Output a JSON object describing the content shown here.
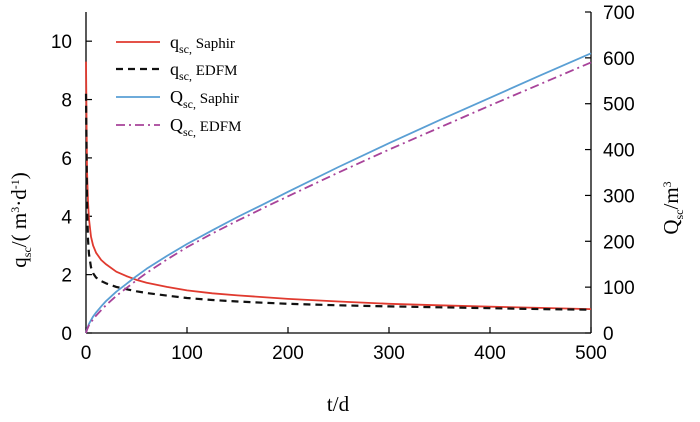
{
  "chart_data": {
    "type": "line",
    "title": "",
    "x": [
      0,
      1,
      2,
      3,
      5,
      7,
      10,
      15,
      20,
      30,
      40,
      50,
      60,
      80,
      100,
      125,
      150,
      175,
      200,
      250,
      300,
      350,
      400,
      450,
      500
    ],
    "xlabel": "t/d",
    "ylabel_left": "q_sc/(m³·d⁻¹)",
    "ylabel_right": "Q_sc/m³",
    "xlim": [
      0,
      500
    ],
    "ylim_left": [
      0,
      11
    ],
    "ylim_right": [
      0,
      700
    ],
    "xticks": [
      0,
      100,
      200,
      300,
      400,
      500
    ],
    "yticks_left": [
      0,
      2,
      4,
      6,
      8,
      10
    ],
    "yticks_right": [
      0,
      100,
      200,
      300,
      400,
      500,
      600,
      700
    ],
    "grid": false,
    "legend_position": "top-left",
    "series": [
      {
        "name": "q_sc, Saphir",
        "axis": "left",
        "color": "#e03a2f",
        "dash": "solid",
        "values": [
          9.3,
          5.6,
          4.5,
          3.9,
          3.3,
          3.0,
          2.75,
          2.5,
          2.35,
          2.1,
          1.95,
          1.82,
          1.72,
          1.58,
          1.46,
          1.36,
          1.29,
          1.23,
          1.17,
          1.08,
          1.0,
          0.95,
          0.9,
          0.86,
          0.82
        ]
      },
      {
        "name": "q_sc, EDFM",
        "axis": "left",
        "color": "#111111",
        "dash": "dashed",
        "values": [
          8.2,
          4.5,
          3.2,
          2.7,
          2.25,
          2.05,
          1.9,
          1.78,
          1.7,
          1.58,
          1.5,
          1.43,
          1.37,
          1.28,
          1.2,
          1.13,
          1.08,
          1.04,
          1.0,
          0.95,
          0.91,
          0.88,
          0.85,
          0.82,
          0.8
        ]
      },
      {
        "name": "Q_sc, Saphir",
        "axis": "right",
        "color": "#5a9fd4",
        "dash": "solid",
        "values": [
          0,
          8,
          14,
          20,
          28,
          36,
          45,
          58,
          70,
          90,
          107,
          124,
          140,
          168,
          194,
          224,
          253,
          280,
          308,
          362,
          414,
          464,
          513,
          562,
          610
        ]
      },
      {
        "name": "Q_sc, EDFM",
        "axis": "right",
        "color": "#a8439a",
        "dash": "dashdot",
        "values": [
          0,
          7,
          12,
          17,
          23,
          30,
          38,
          50,
          61,
          81,
          98,
          115,
          131,
          160,
          187,
          217,
          245,
          272,
          298,
          350,
          400,
          448,
          496,
          543,
          590
        ]
      }
    ],
    "legend": [
      {
        "main": "q",
        "sub": "sc,",
        "tail": " Saphir"
      },
      {
        "main": "q",
        "sub": "sc,",
        "tail": " EDFM"
      },
      {
        "main": "Q",
        "sub": "sc,",
        "tail": " Saphir"
      },
      {
        "main": "Q",
        "sub": "sc,",
        "tail": " EDFM"
      }
    ]
  }
}
